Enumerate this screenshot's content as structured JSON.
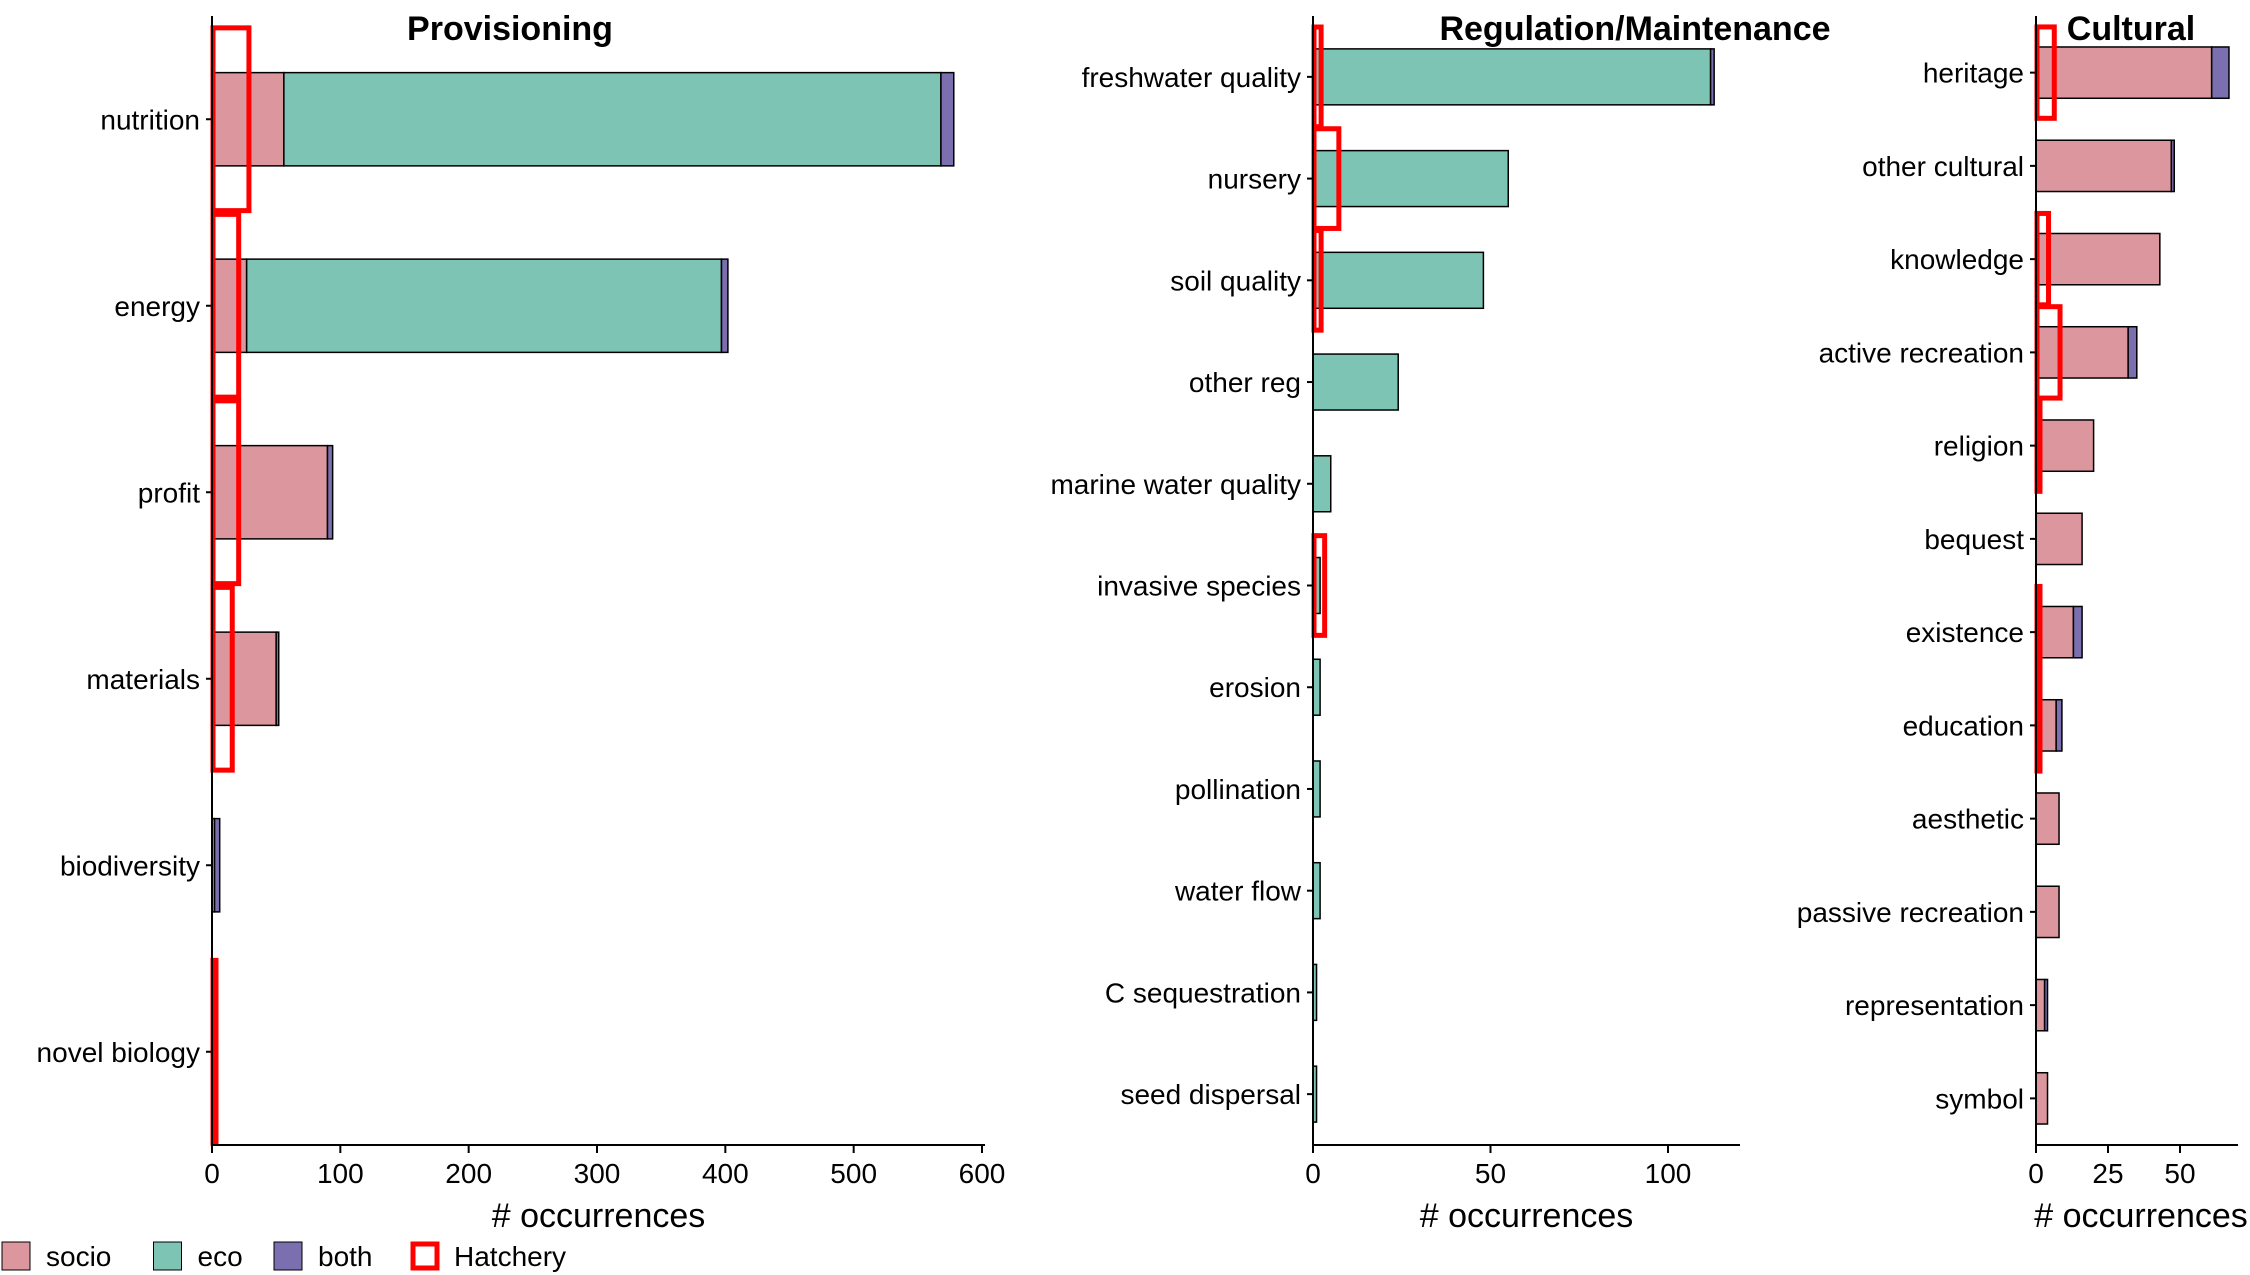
{
  "legend": {
    "items": [
      {
        "key": "socio",
        "label": "socio",
        "color": "#DB969E",
        "style": "fill"
      },
      {
        "key": "eco",
        "label": "eco",
        "color": "#7DC4B4",
        "style": "fill"
      },
      {
        "key": "both",
        "label": "both",
        "color": "#7B6FB0",
        "style": "fill"
      },
      {
        "key": "hatchery",
        "label": "Hatchery",
        "color": "#FF0000",
        "style": "outline"
      }
    ]
  },
  "chart_data": [
    {
      "type": "bar",
      "orientation": "horizontal",
      "stacked": true,
      "title": "Provisioning",
      "xlabel": "# occurrences",
      "xlim": [
        0,
        600
      ],
      "xticks": [
        0,
        100,
        200,
        300,
        400,
        500,
        600
      ],
      "categories": [
        "nutrition",
        "energy",
        "profit",
        "materials",
        "biodiversity",
        "novel biology"
      ],
      "series": [
        {
          "name": "socio",
          "values": [
            56,
            27,
            90,
            50,
            2,
            0
          ]
        },
        {
          "name": "eco",
          "values": [
            512,
            370,
            0,
            0,
            0,
            0
          ]
        },
        {
          "name": "both",
          "values": [
            10,
            5,
            4,
            2,
            4,
            0
          ]
        }
      ],
      "hatchery": [
        28,
        20,
        20,
        15,
        0,
        1
      ]
    },
    {
      "type": "bar",
      "orientation": "horizontal",
      "stacked": true,
      "title": "Regulation/Maintenance",
      "xlabel": "# occurrences",
      "xlim": [
        0,
        120
      ],
      "xticks": [
        0,
        50,
        100
      ],
      "categories": [
        "freshwater quality",
        "nursery",
        "soil quality",
        "other reg",
        "marine water quality",
        "invasive species",
        "erosion",
        "pollination",
        "water flow",
        "C sequestration",
        "seed dispersal"
      ],
      "series": [
        {
          "name": "socio",
          "values": [
            0,
            0,
            0,
            0,
            0,
            0,
            0,
            0,
            0,
            0,
            0
          ]
        },
        {
          "name": "eco",
          "values": [
            112,
            55,
            48,
            24,
            5,
            2,
            2,
            2,
            2,
            1,
            1
          ]
        },
        {
          "name": "both",
          "values": [
            1,
            0,
            0,
            0,
            0,
            0,
            0,
            0,
            0,
            0,
            0
          ]
        }
      ],
      "hatchery": [
        2,
        7,
        2,
        0,
        0,
        3,
        0,
        0,
        0,
        0,
        0
      ]
    },
    {
      "type": "bar",
      "orientation": "horizontal",
      "stacked": true,
      "title": "Cultural",
      "xlabel": "# occurrences",
      "xlim": [
        0,
        70
      ],
      "xticks": [
        0,
        25,
        50
      ],
      "categories": [
        "heritage",
        "other cultural",
        "knowledge",
        "active recreation",
        "religion",
        "bequest",
        "existence",
        "education",
        "aesthetic",
        "passive recreation",
        "representation",
        "symbol"
      ],
      "series": [
        {
          "name": "socio",
          "values": [
            61,
            47,
            43,
            32,
            20,
            16,
            13,
            7,
            8,
            8,
            3,
            4
          ]
        },
        {
          "name": "eco",
          "values": [
            0,
            0,
            0,
            0,
            0,
            0,
            0,
            0,
            0,
            0,
            0,
            0
          ]
        },
        {
          "name": "both",
          "values": [
            6,
            1,
            0,
            3,
            0,
            0,
            3,
            2,
            0,
            0,
            1,
            0
          ]
        }
      ],
      "hatchery": [
        6,
        0,
        4,
        8,
        1,
        0,
        1,
        1,
        0,
        0,
        0,
        0
      ]
    }
  ]
}
